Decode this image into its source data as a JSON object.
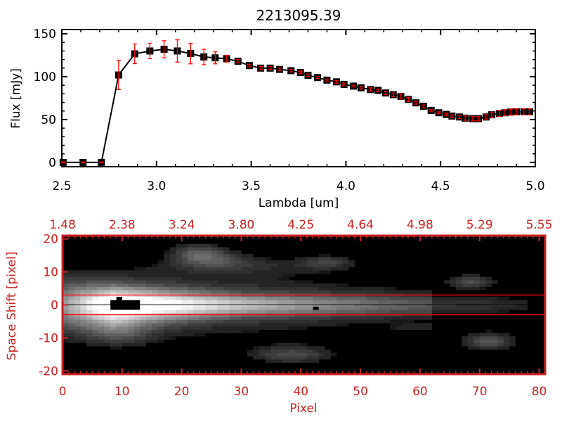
{
  "colors": {
    "axis_top": "#000000",
    "axis_bottom": "#cc2222",
    "errorbar": "#ff0000",
    "aperture": "#ff0000"
  },
  "chart_data": [
    {
      "type": "line",
      "title": "2213095.39",
      "xlabel": "Lambda [um]",
      "ylabel": "Flux [mJy]",
      "xlim": [
        2.5,
        5.0
      ],
      "ylim": [
        -5,
        155
      ],
      "xticks": [
        "2.5",
        "3.0",
        "3.5",
        "4.0",
        "4.5",
        "5.0"
      ],
      "xtick_values": [
        2.5,
        3.0,
        3.5,
        4.0,
        4.5,
        5.0
      ],
      "yticks": [
        "0",
        "50",
        "100",
        "150"
      ],
      "ytick_values": [
        0,
        50,
        100,
        150
      ],
      "series": [
        {
          "name": "flux",
          "x": [
            2.507,
            2.612,
            2.709,
            2.8,
            2.885,
            2.965,
            3.04,
            3.11,
            3.18,
            3.25,
            3.31,
            3.37,
            3.43,
            3.49,
            3.55,
            3.6,
            3.65,
            3.71,
            3.76,
            3.8,
            3.85,
            3.9,
            3.95,
            3.99,
            4.04,
            4.08,
            4.13,
            4.17,
            4.21,
            4.25,
            4.29,
            4.33,
            4.37,
            4.41,
            4.45,
            4.49,
            4.53,
            4.56,
            4.6,
            4.63,
            4.67,
            4.7,
            4.74,
            4.77,
            4.81,
            4.84,
            4.87,
            4.9,
            4.94,
            4.97
          ],
          "y": [
            0,
            0,
            0,
            102,
            126.7,
            130,
            132,
            130,
            127,
            123,
            122,
            121,
            118,
            113,
            110,
            110,
            108.5,
            107,
            105,
            101.6,
            99,
            96,
            94,
            91,
            89,
            87,
            85,
            84,
            81,
            79,
            77,
            73.5,
            69.5,
            65.5,
            60.7,
            58,
            56,
            54,
            53,
            51.6,
            51,
            51,
            53,
            55.6,
            57,
            58,
            58.8,
            59,
            59,
            59
          ],
          "yerr": [
            0.5,
            0.5,
            0.5,
            17,
            11.5,
            9,
            10,
            13,
            12,
            9,
            7,
            4,
            2,
            1.5,
            2,
            2,
            1.5,
            1.5,
            1.5,
            1.5,
            1,
            1,
            1.5,
            1.5,
            1,
            1.5,
            2,
            1.5,
            2,
            2,
            3,
            2.5,
            1.5,
            1.5,
            1,
            1,
            1.5,
            1.5,
            2,
            2.5,
            2.5,
            2.5,
            2.5,
            3,
            3.5,
            3.5,
            3.5,
            3.5,
            3.5,
            3.5
          ]
        }
      ]
    },
    {
      "type": "heatmap",
      "xlabel": "Pixel",
      "ylabel": "Space Shift [pixel]",
      "xlim": [
        0,
        81
      ],
      "ylim": [
        -21,
        21
      ],
      "xticks": [
        "0",
        "10",
        "20",
        "30",
        "40",
        "50",
        "60",
        "70",
        "80"
      ],
      "xtick_values": [
        0,
        10,
        20,
        30,
        40,
        50,
        60,
        70,
        80
      ],
      "top_xticks": [
        "1.48",
        "2.38",
        "3.24",
        "3.80",
        "4.25",
        "4.64",
        "4.98",
        "5.29",
        "5.55"
      ],
      "yticks": [
        "20",
        "10",
        "0",
        "-10",
        "-20"
      ],
      "ytick_values": [
        20,
        10,
        0,
        -10,
        -20
      ],
      "aperture_lines": [
        3,
        -3
      ],
      "center_line": 0
    }
  ]
}
